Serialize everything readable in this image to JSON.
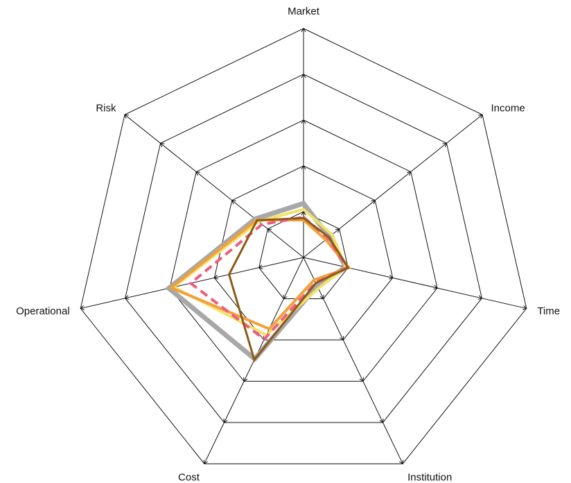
{
  "chart_data": {
    "type": "radar",
    "axes": [
      "Market",
      "Income",
      "Time",
      "Institution",
      "Cost",
      "Operational",
      "Risk"
    ],
    "range": [
      0,
      5
    ],
    "rings": 5,
    "grid": true,
    "legend": "none",
    "series": [
      {
        "values": [
          1.18,
          0.72,
          0.95,
          0.69,
          2.46,
          3.02,
          1.35
        ],
        "color": "#a8a8a8",
        "width": 7,
        "dash": ""
      },
      {
        "values": [
          1.05,
          0.8,
          0.95,
          0.75,
          1.88,
          2.91,
          1.26
        ],
        "color": "#f2e26a",
        "width": 4,
        "dash": ""
      },
      {
        "values": [
          0.82,
          0.62,
          1.02,
          0.54,
          1.73,
          2.97,
          1.31
        ],
        "color": "#f2a03c",
        "width": 4,
        "dash": ""
      },
      {
        "values": [
          0.88,
          0.68,
          0.98,
          0.61,
          1.98,
          2.53,
          1.16
        ],
        "color": "#ee5c80",
        "width": 4,
        "dash": "12 7"
      },
      {
        "values": [
          0.86,
          0.71,
          1.0,
          0.62,
          2.48,
          1.67,
          1.3
        ],
        "color": "#8b5a13",
        "width": 3,
        "dash": ""
      }
    ]
  }
}
